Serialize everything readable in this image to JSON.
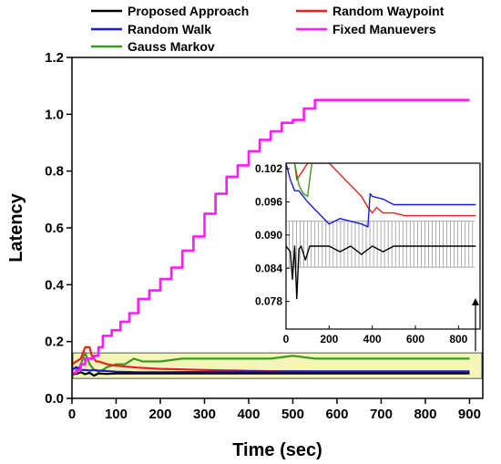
{
  "chart_data": [
    {
      "type": "line",
      "xlabel": "Time (sec)",
      "ylabel": "Latency",
      "xlim": [
        0,
        930
      ],
      "ylim": [
        0,
        1.2
      ],
      "xticks": [
        0,
        100,
        200,
        300,
        400,
        500,
        600,
        700,
        800,
        900
      ],
      "yticks": [
        0.0,
        0.2,
        0.4,
        0.6,
        0.8,
        1.0,
        1.2
      ],
      "ytick_labels": [
        "0.0",
        "0.2",
        "0.4",
        "0.6",
        "0.8",
        "1.0",
        "1.2"
      ],
      "legend_position": "top",
      "grid": false,
      "highlight_box": {
        "x": [
          0,
          930
        ],
        "y": [
          0.07,
          0.16
        ],
        "color": "#f3f3a8"
      },
      "series": [
        {
          "name": "Proposed Approach",
          "color": "#000000",
          "x": [
            0,
            10,
            20,
            30,
            40,
            50,
            60,
            80,
            100,
            150,
            200,
            300,
            400,
            500,
            600,
            700,
            800,
            900
          ],
          "y": [
            0.088,
            0.086,
            0.092,
            0.085,
            0.09,
            0.08,
            0.088,
            0.086,
            0.088,
            0.088,
            0.088,
            0.088,
            0.088,
            0.088,
            0.088,
            0.088,
            0.088,
            0.088
          ]
        },
        {
          "name": "Random Waypoint",
          "color": "#e8201c",
          "x": [
            0,
            20,
            30,
            40,
            45,
            55,
            60,
            80,
            100,
            150,
            200,
            300,
            400,
            500,
            600,
            700,
            800,
            900
          ],
          "y": [
            0.12,
            0.14,
            0.18,
            0.18,
            0.15,
            0.13,
            0.13,
            0.12,
            0.115,
            0.108,
            0.104,
            0.1,
            0.097,
            0.095,
            0.094,
            0.094,
            0.094,
            0.094
          ]
        },
        {
          "name": "Random Walk",
          "color": "#1b1bd6",
          "x": [
            0,
            10,
            20,
            30,
            40,
            50,
            60,
            100,
            150,
            200,
            300,
            400,
            450,
            500,
            600,
            700,
            800,
            900
          ],
          "y": [
            0.1,
            0.11,
            0.1,
            0.1,
            0.098,
            0.1,
            0.098,
            0.094,
            0.092,
            0.092,
            0.093,
            0.095,
            0.094,
            0.095,
            0.095,
            0.095,
            0.095,
            0.095
          ]
        },
        {
          "name": "Fixed Manuevers",
          "color": "#ff1aff",
          "x": [
            0,
            10,
            20,
            30,
            40,
            50,
            60,
            70,
            90,
            110,
            130,
            150,
            175,
            200,
            225,
            250,
            275,
            300,
            325,
            350,
            375,
            400,
            425,
            450,
            475,
            500,
            525,
            550,
            900
          ],
          "y": [
            0.09,
            0.1,
            0.12,
            0.14,
            0.14,
            0.15,
            0.18,
            0.22,
            0.24,
            0.27,
            0.3,
            0.35,
            0.38,
            0.42,
            0.46,
            0.52,
            0.57,
            0.65,
            0.72,
            0.78,
            0.82,
            0.87,
            0.91,
            0.94,
            0.97,
            0.98,
            1.02,
            1.05,
            1.05
          ]
        },
        {
          "name": "Gauss Markov",
          "color": "#3c9a1e",
          "x": [
            0,
            10,
            20,
            30,
            40,
            50,
            60,
            70,
            80,
            100,
            120,
            140,
            160,
            200,
            250,
            300,
            350,
            400,
            450,
            500,
            550,
            600,
            700,
            800,
            900
          ],
          "y": [
            0.08,
            0.09,
            0.12,
            0.16,
            0.12,
            0.1,
            0.095,
            0.1,
            0.11,
            0.12,
            0.12,
            0.14,
            0.13,
            0.13,
            0.14,
            0.14,
            0.14,
            0.14,
            0.14,
            0.15,
            0.14,
            0.14,
            0.14,
            0.14,
            0.14
          ]
        }
      ]
    },
    {
      "type": "line",
      "role": "inset",
      "xlim": [
        0,
        900
      ],
      "ylim": [
        0.073,
        0.103
      ],
      "xticks": [
        0,
        200,
        400,
        600,
        800
      ],
      "yticks": [
        0.078,
        0.084,
        0.09,
        0.096,
        0.102
      ],
      "ytick_labels": [
        "0.078",
        "0.084",
        "0.090",
        "0.096",
        "0.102"
      ],
      "series": [
        {
          "name": "Proposed Approach",
          "color": "#000000",
          "x": [
            0,
            20,
            30,
            40,
            50,
            60,
            70,
            90,
            110,
            150,
            200,
            250,
            300,
            350,
            400,
            450,
            500,
            550,
            600,
            700,
            800,
            880
          ],
          "y": [
            0.088,
            0.087,
            0.082,
            0.088,
            0.0785,
            0.0875,
            0.088,
            0.0855,
            0.088,
            0.088,
            0.088,
            0.087,
            0.088,
            0.0865,
            0.088,
            0.087,
            0.088,
            0.088,
            0.088,
            0.088,
            0.088,
            0.088
          ]
        },
        {
          "name": "Random Waypoint",
          "color": "#e8201c",
          "x": [
            40,
            50,
            100,
            150,
            200,
            250,
            300,
            350,
            380,
            400,
            420,
            450,
            500,
            550,
            600,
            700,
            800,
            880
          ],
          "y": [
            0.103,
            0.1,
            0.103,
            0.103,
            0.103,
            0.101,
            0.099,
            0.097,
            0.095,
            0.094,
            0.095,
            0.094,
            0.094,
            0.0935,
            0.0935,
            0.0935,
            0.0935,
            0.0935
          ]
        },
        {
          "name": "Random Walk",
          "color": "#1b1bd6",
          "x": [
            0,
            20,
            40,
            60,
            80,
            100,
            150,
            200,
            250,
            300,
            350,
            380,
            390,
            400,
            450,
            500,
            600,
            700,
            800,
            880
          ],
          "y": [
            0.103,
            0.1,
            0.098,
            0.098,
            0.097,
            0.096,
            0.094,
            0.092,
            0.093,
            0.0925,
            0.092,
            0.0915,
            0.0975,
            0.097,
            0.0965,
            0.0955,
            0.0955,
            0.0955,
            0.0955,
            0.0955
          ]
        },
        {
          "name": "Gauss Markov",
          "color": "#3c9a1e",
          "x": [
            40,
            60,
            80,
            100,
            110,
            120
          ],
          "y": [
            0.103,
            0.099,
            0.0975,
            0.097,
            0.1,
            0.103
          ]
        }
      ]
    }
  ]
}
